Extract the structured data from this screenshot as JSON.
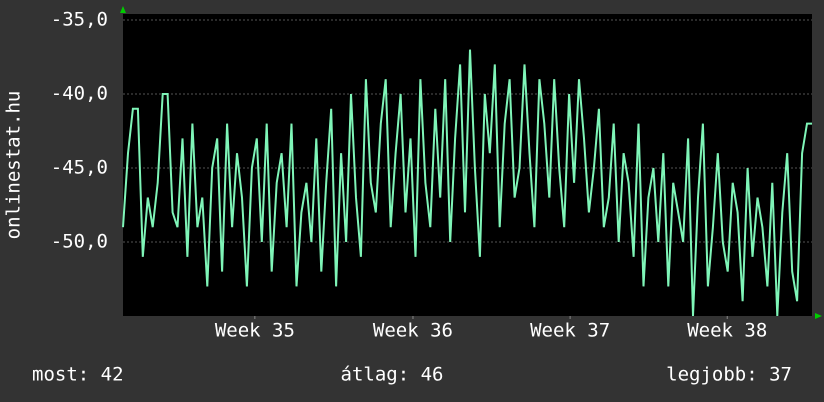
{
  "chart_data": {
    "type": "line",
    "ylabel": "onlinestat.hu",
    "color": "#7ff5b8",
    "grid": true,
    "xlim": [
      0,
      139
    ],
    "xticks": [
      {
        "value": 26.6,
        "label": "Week 35"
      },
      {
        "value": 58.5,
        "label": "Week 36"
      },
      {
        "value": 90.2,
        "label": "Week 37"
      },
      {
        "value": 121.9,
        "label": "Week 38"
      }
    ],
    "ylim": [
      -55,
      -35
    ],
    "yticks": [
      {
        "value": -35,
        "label": "-35,0"
      },
      {
        "value": -40,
        "label": "-40,0"
      },
      {
        "value": -45,
        "label": "-45,0"
      },
      {
        "value": -50,
        "label": "-50,0"
      }
    ],
    "values": [
      -49,
      -44,
      -41,
      -41,
      -51,
      -47,
      -49,
      -46,
      -40,
      -40,
      -48,
      -49,
      -43,
      -51,
      -42,
      -49,
      -47,
      -53,
      -45,
      -43,
      -52,
      -42,
      -49,
      -44,
      -47,
      -53,
      -45,
      -43,
      -50,
      -42,
      -52,
      -46,
      -44,
      -49,
      -42,
      -53,
      -48,
      -46,
      -50,
      -43,
      -52,
      -46,
      -41,
      -53,
      -44,
      -50,
      -40,
      -47,
      -51,
      -39,
      -46,
      -48,
      -42,
      -39,
      -49,
      -44,
      -40,
      -48,
      -43,
      -51,
      -39,
      -46,
      -49,
      -41,
      -47,
      -39,
      -50,
      -43,
      -38,
      -48,
      -37,
      -45,
      -51,
      -40,
      -44,
      -38,
      -49,
      -42,
      -39,
      -47,
      -45,
      -38,
      -44,
      -49,
      -39,
      -42,
      -47,
      -39,
      -45,
      -49,
      -40,
      -46,
      -39,
      -43,
      -48,
      -45,
      -41,
      -49,
      -47,
      -42,
      -50,
      -44,
      -46,
      -51,
      -42,
      -53,
      -47,
      -45,
      -50,
      -44,
      -53,
      -46,
      -48,
      -50,
      -43,
      -55,
      -47,
      -42,
      -53,
      -49,
      -44,
      -50,
      -52,
      -46,
      -48,
      -54,
      -45,
      -51,
      -47,
      -49,
      -53,
      -46,
      -55,
      -48,
      -44,
      -52,
      -54,
      -44,
      -42,
      -42
    ],
    "footer": {
      "current": "most: 42",
      "average": "átlag: 46",
      "best": "legjobb: 37"
    }
  }
}
